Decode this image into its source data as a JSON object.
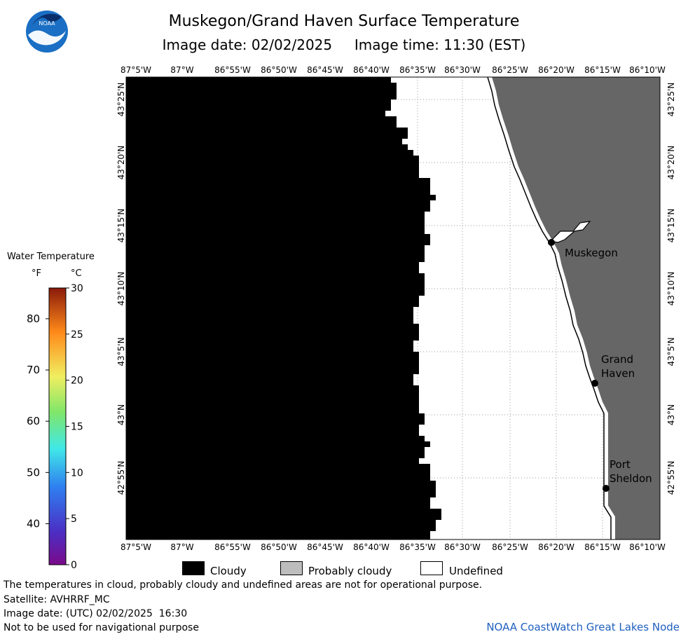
{
  "header": {
    "title": "Muskegon/Grand Haven Surface Temperature",
    "subtitle": "Image date: 02/02/2025     Image time: 11:30 (EST)",
    "logo_text": "NOAA"
  },
  "map": {
    "lon_labels": [
      "87°5'W",
      "87°W",
      "86°55'W",
      "86°50'W",
      "86°45'W",
      "86°40'W",
      "86°35'W",
      "86°30'W",
      "86°25'W",
      "86°20'W",
      "86°15'W",
      "86°10'W"
    ],
    "lat_labels": [
      "43°25'N",
      "43°20'N",
      "43°15'N",
      "43°10'N",
      "43°5'N",
      "43°N",
      "42°55'N"
    ],
    "places": [
      {
        "name": "Muskegon"
      },
      {
        "name_line1": "Grand",
        "name_line2": "Haven"
      },
      {
        "name_line1": "Port",
        "name_line2": "Sheldon"
      }
    ],
    "colors": {
      "cloudy": "#000000",
      "land": "#666666",
      "undefined": "#ffffff",
      "grid": "#888888"
    }
  },
  "legend": {
    "title": "Water Temperature",
    "unit_f": "°F",
    "unit_c": "°C",
    "fahrenheit_ticks": [
      "80",
      "70",
      "60",
      "50",
      "40"
    ],
    "celsius_ticks": [
      "30",
      "25",
      "20",
      "15",
      "10",
      "5",
      "0"
    ],
    "celsius_range": [
      0,
      30
    ]
  },
  "key": [
    {
      "label": "Cloudy",
      "color": "#000000"
    },
    {
      "label": "Probably cloudy",
      "color": "#bdbdbd"
    },
    {
      "label": "Undefined",
      "color": "#ffffff"
    }
  ],
  "notes": {
    "line1": "The temperatures in cloud, probably cloudy and undefined areas are not for operational purpose.",
    "line2": "Satellite: AVHRRF_MC",
    "line3": "Image date: (UTC) 02/02/2025  16:30",
    "line4": "Not to be used for navigational purpose",
    "credit": "NOAA CoastWatch Great Lakes Node"
  }
}
